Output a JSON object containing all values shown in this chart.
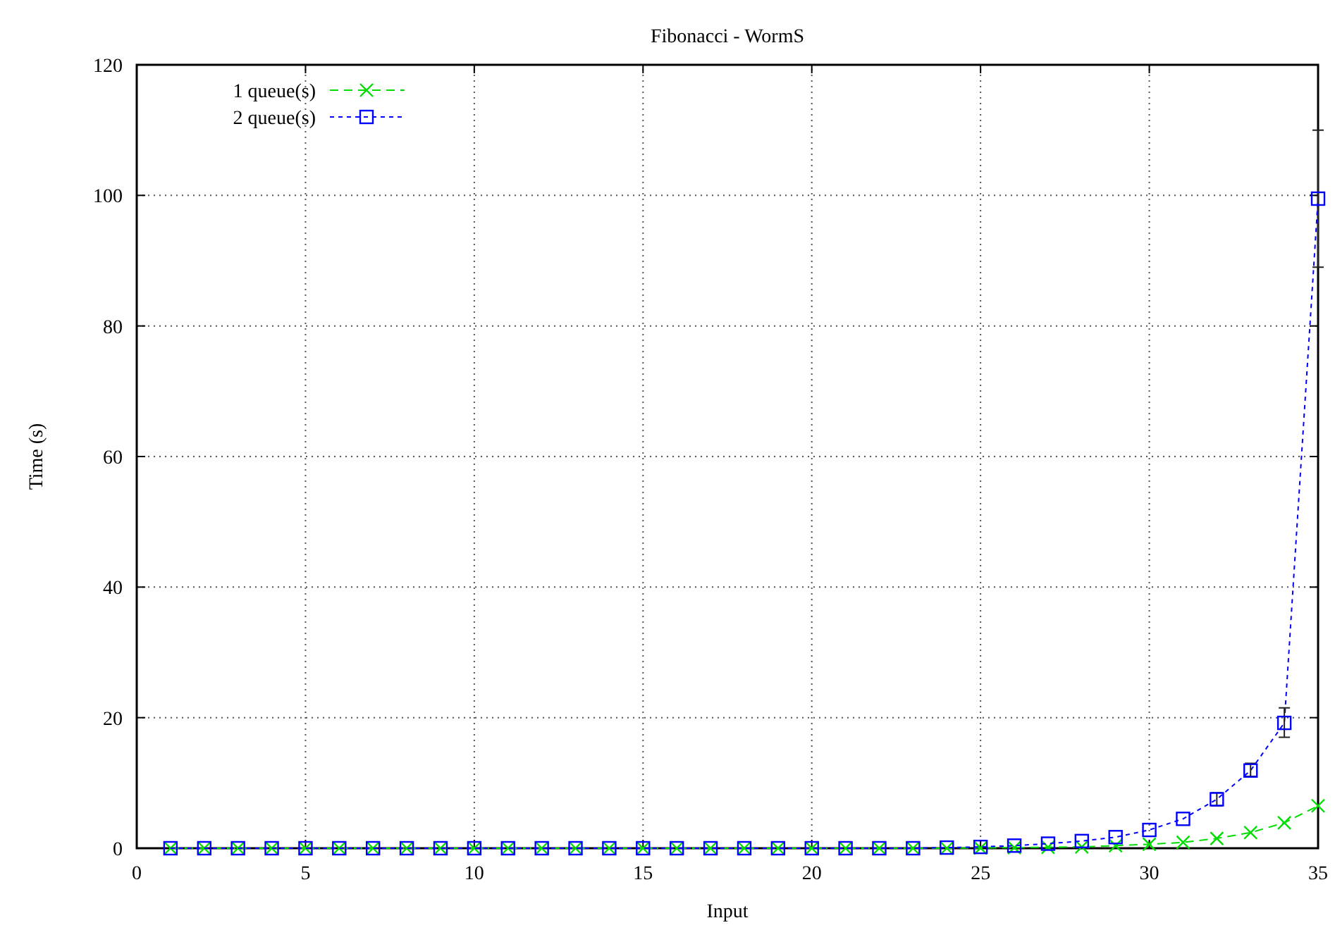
{
  "chart_data": {
    "type": "line",
    "title": "Fibonacci - WormS",
    "xlabel": "Input",
    "ylabel": "Time (s)",
    "x": [
      1,
      2,
      3,
      4,
      5,
      6,
      7,
      8,
      9,
      10,
      11,
      12,
      13,
      14,
      15,
      16,
      17,
      18,
      19,
      20,
      21,
      22,
      23,
      24,
      25,
      26,
      27,
      28,
      29,
      30,
      31,
      32,
      33,
      34,
      35
    ],
    "series": [
      {
        "name": "1 queue(s)",
        "color": "#00dd00",
        "marker": "cross",
        "line_style": "dashed",
        "values": [
          0,
          0,
          0,
          0,
          0,
          0,
          0,
          0,
          0,
          0,
          0,
          0,
          0,
          0,
          0,
          0,
          0,
          0,
          0,
          0,
          0,
          0,
          0,
          0,
          0.05,
          0.1,
          0.15,
          0.2,
          0.4,
          0.6,
          0.9,
          1.5,
          2.4,
          3.9,
          6.5
        ]
      },
      {
        "name": "2 queue(s)",
        "color": "#0000ff",
        "marker": "square",
        "line_style": "dotted",
        "values": [
          0,
          0,
          0,
          0,
          0,
          0,
          0,
          0,
          0,
          0,
          0,
          0,
          0,
          0,
          0,
          0,
          0,
          0,
          0,
          0,
          0,
          0,
          0,
          0.1,
          0.2,
          0.4,
          0.7,
          1.1,
          1.7,
          2.8,
          4.5,
          7.5,
          11.9,
          19.2,
          99.5
        ],
        "errors": [
          null,
          null,
          null,
          null,
          null,
          null,
          null,
          null,
          null,
          null,
          null,
          null,
          null,
          null,
          null,
          null,
          null,
          null,
          null,
          null,
          null,
          null,
          null,
          null,
          null,
          null,
          null,
          null,
          null,
          null,
          null,
          [
            6.5,
            8.5
          ],
          [
            11,
            13
          ],
          [
            17,
            21.5
          ],
          [
            89,
            110
          ]
        ]
      }
    ],
    "xlim": [
      0,
      35
    ],
    "xticks": [
      0,
      5,
      10,
      15,
      20,
      25,
      30,
      35
    ],
    "ylim": [
      0,
      120
    ],
    "yticks": [
      0,
      20,
      40,
      60,
      80,
      100,
      120
    ],
    "grid": true,
    "legend": "top left"
  }
}
